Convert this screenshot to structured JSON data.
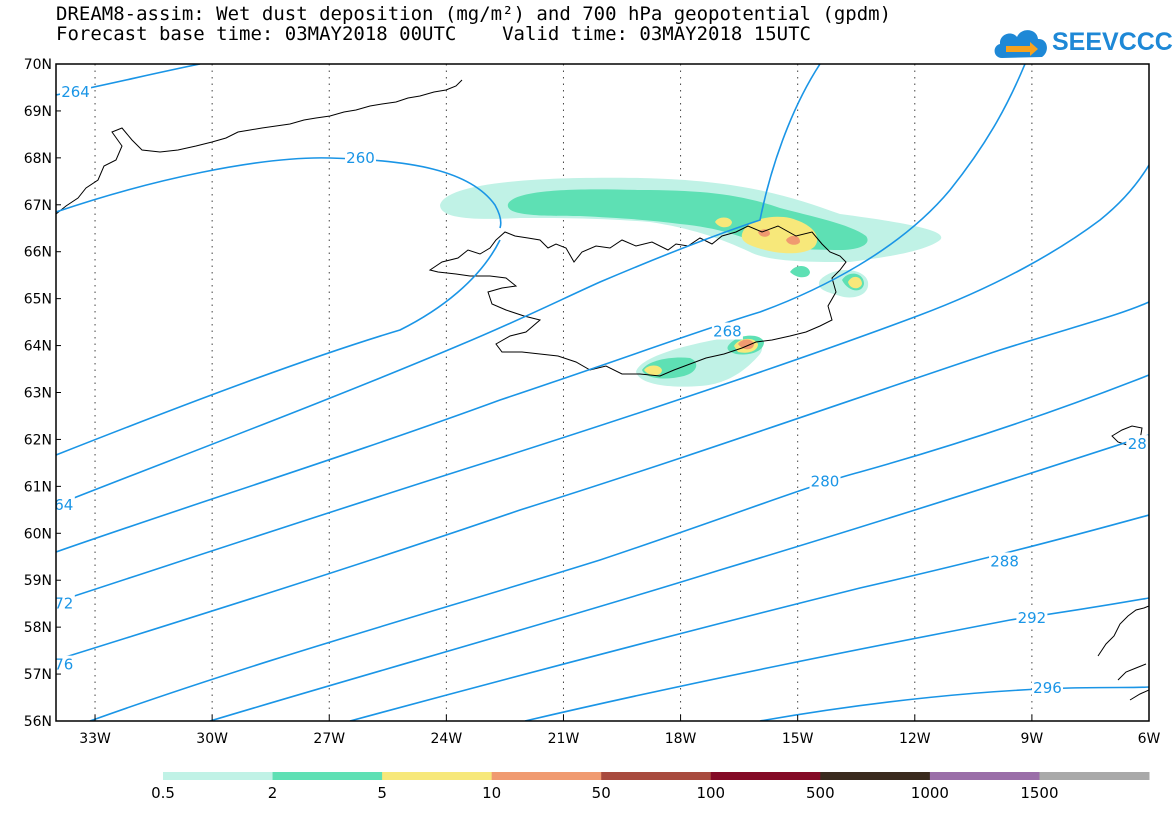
{
  "title": {
    "line1": "DREAM8-assim: Wet dust deposition (mg/m²) and 700 hPa geopotential (gpdm)",
    "line2": "Forecast base time: 03MAY2018 00UTC    Valid time: 03MAY2018 15UTC"
  },
  "logo": {
    "text": "SEEVCCC",
    "icon": "cloud-arrow-icon",
    "color": "#1e88d6"
  },
  "map": {
    "lon_range": [
      -34,
      -6
    ],
    "lat_range": [
      56,
      70
    ],
    "lat_ticks": [
      {
        "value": 70,
        "label": "70N"
      },
      {
        "value": 69,
        "label": "69N"
      },
      {
        "value": 68,
        "label": "68N"
      },
      {
        "value": 67,
        "label": "67N"
      },
      {
        "value": 66,
        "label": "66N"
      },
      {
        "value": 65,
        "label": "65N"
      },
      {
        "value": 64,
        "label": "64N"
      },
      {
        "value": 63,
        "label": "63N"
      },
      {
        "value": 62,
        "label": "62N"
      },
      {
        "value": 61,
        "label": "61N"
      },
      {
        "value": 60,
        "label": "60N"
      },
      {
        "value": 59,
        "label": "59N"
      },
      {
        "value": 58,
        "label": "58N"
      },
      {
        "value": 57,
        "label": "57N"
      },
      {
        "value": 56,
        "label": "56N"
      }
    ],
    "lon_ticks": [
      {
        "value": -33,
        "label": "33W"
      },
      {
        "value": -30,
        "label": "30W"
      },
      {
        "value": -27,
        "label": "27W"
      },
      {
        "value": -24,
        "label": "24W"
      },
      {
        "value": -21,
        "label": "21W"
      },
      {
        "value": -18,
        "label": "18W"
      },
      {
        "value": -15,
        "label": "15W"
      },
      {
        "value": -12,
        "label": "12W"
      },
      {
        "value": -9,
        "label": "9W"
      },
      {
        "value": -6,
        "label": "6W"
      }
    ],
    "grid": "dotted",
    "contour_color": "#1a95e6",
    "contour_labels": [
      {
        "text": "264",
        "lon": -33.5,
        "lat": 69.4
      },
      {
        "text": "260",
        "lon": -26.2,
        "lat": 68.0
      },
      {
        "text": "268",
        "lon": -16.8,
        "lat": 64.3
      },
      {
        "text": "280",
        "lon": -14.3,
        "lat": 61.1
      },
      {
        "text": "288",
        "lon": -9.7,
        "lat": 59.4
      },
      {
        "text": "292",
        "lon": -9.0,
        "lat": 58.2
      },
      {
        "text": "296",
        "lon": -8.6,
        "lat": 56.7
      },
      {
        "text": "64",
        "lon": -33.8,
        "lat": 60.6
      },
      {
        "text": "72",
        "lon": -33.8,
        "lat": 58.5
      },
      {
        "text": "76",
        "lon": -33.8,
        "lat": 57.2
      },
      {
        "text": "28",
        "lon": -6.3,
        "lat": 61.9
      }
    ]
  },
  "colorbar": {
    "segments": [
      {
        "color": "#c0f2e6"
      },
      {
        "color": "#5ee0b4"
      },
      {
        "color": "#f7e87a"
      },
      {
        "color": "#f09a70"
      },
      {
        "color": "#a84a3e"
      },
      {
        "color": "#840a26"
      },
      {
        "color": "#3a2a1e"
      },
      {
        "color": "#9a6ea8"
      },
      {
        "color": "#a9a9a9"
      }
    ],
    "labels": [
      "0.5",
      "2",
      "5",
      "10",
      "50",
      "100",
      "500",
      "1000",
      "1500"
    ]
  }
}
